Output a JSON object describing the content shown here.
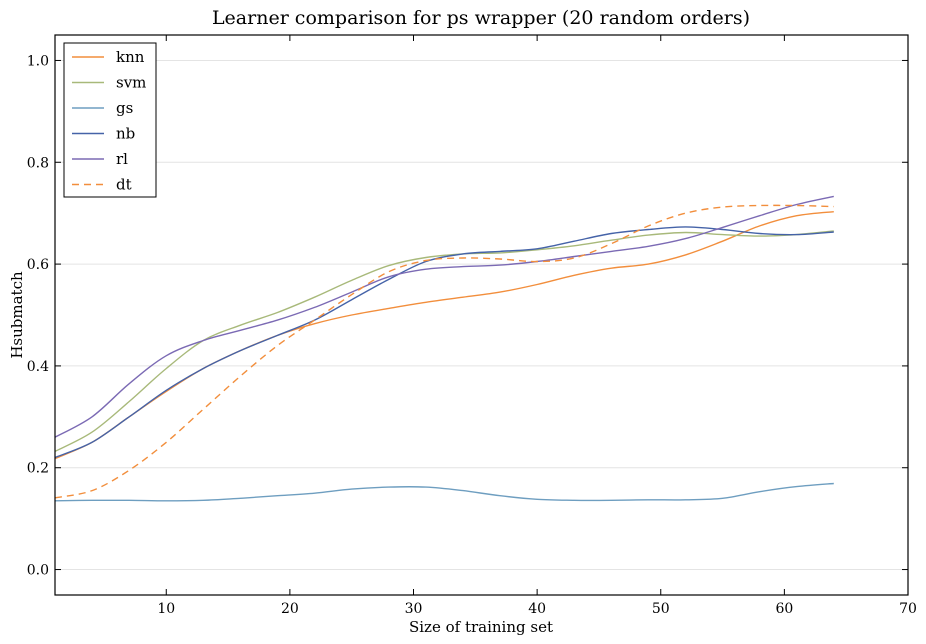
{
  "chart_data": {
    "type": "line",
    "title": "Learner comparison for ps wrapper (20 random orders)",
    "xlabel": "Size of training set",
    "ylabel": "Hsubmatch",
    "xlim": [
      1,
      70
    ],
    "ylim": [
      -0.05,
      1.05
    ],
    "xticks": [
      10,
      20,
      30,
      40,
      50,
      60,
      70
    ],
    "xtick_labels": [
      "10",
      "20",
      "30",
      "40",
      "50",
      "60",
      "70"
    ],
    "yticks": [
      0.0,
      0.2,
      0.4,
      0.6,
      0.8,
      1.0
    ],
    "ytick_labels": [
      "0.0",
      "0.2",
      "0.4",
      "0.6",
      "0.8",
      "1.0"
    ],
    "grid": "horizontal",
    "legend_position": "top-left",
    "x": [
      1,
      4,
      7,
      10,
      13,
      16,
      19,
      22,
      25,
      28,
      31,
      34,
      37,
      40,
      43,
      46,
      49,
      52,
      55,
      58,
      61,
      64
    ],
    "series": [
      {
        "name": "knn",
        "color": "#f28e3c",
        "dash": "solid",
        "values": [
          0.218,
          0.25,
          0.3,
          0.35,
          0.395,
          0.43,
          0.46,
          0.483,
          0.5,
          0.513,
          0.525,
          0.535,
          0.545,
          0.56,
          0.578,
          0.592,
          0.6,
          0.618,
          0.645,
          0.675,
          0.695,
          0.703
        ]
      },
      {
        "name": "svm",
        "color": "#a8b97a",
        "dash": "solid",
        "values": [
          0.232,
          0.27,
          0.33,
          0.395,
          0.45,
          0.48,
          0.505,
          0.535,
          0.568,
          0.597,
          0.613,
          0.62,
          0.622,
          0.628,
          0.636,
          0.647,
          0.657,
          0.662,
          0.658,
          0.655,
          0.658,
          0.665
        ]
      },
      {
        "name": "gs",
        "color": "#6e9ec0",
        "dash": "solid",
        "values": [
          0.135,
          0.136,
          0.136,
          0.135,
          0.136,
          0.14,
          0.145,
          0.15,
          0.158,
          0.162,
          0.162,
          0.155,
          0.145,
          0.138,
          0.136,
          0.136,
          0.137,
          0.137,
          0.14,
          0.153,
          0.163,
          0.169
        ]
      },
      {
        "name": "nb",
        "color": "#4563a8",
        "dash": "solid",
        "values": [
          0.22,
          0.25,
          0.3,
          0.352,
          0.395,
          0.43,
          0.46,
          0.49,
          0.53,
          0.57,
          0.605,
          0.62,
          0.625,
          0.63,
          0.645,
          0.66,
          0.668,
          0.673,
          0.668,
          0.66,
          0.658,
          0.663
        ]
      },
      {
        "name": "rl",
        "color": "#7b6ab4",
        "dash": "solid",
        "values": [
          0.26,
          0.3,
          0.365,
          0.42,
          0.45,
          0.47,
          0.49,
          0.515,
          0.545,
          0.575,
          0.59,
          0.595,
          0.598,
          0.605,
          0.615,
          0.625,
          0.635,
          0.65,
          0.672,
          0.695,
          0.717,
          0.733
        ]
      },
      {
        "name": "dt",
        "color": "#f28e3c",
        "dash": "dashed",
        "values": [
          0.141,
          0.155,
          0.195,
          0.25,
          0.315,
          0.38,
          0.44,
          0.49,
          0.54,
          0.585,
          0.607,
          0.612,
          0.61,
          0.605,
          0.612,
          0.64,
          0.675,
          0.7,
          0.712,
          0.715,
          0.715,
          0.713
        ]
      }
    ]
  }
}
